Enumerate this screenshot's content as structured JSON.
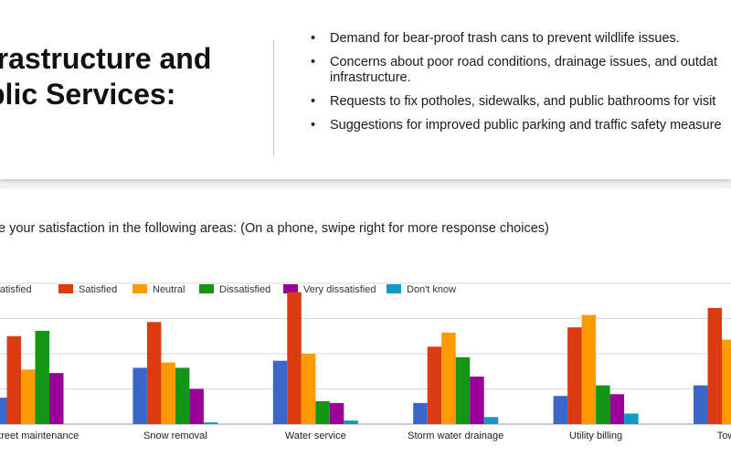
{
  "header": {
    "title_line1": "frastructure and",
    "title_line2": "blic Services:",
    "bullets": [
      "Demand for bear-proof trash cans to prevent wildlife issues.",
      "Concerns about poor road conditions, drainage issues, and outdat",
      "infrastructure.",
      "Requests to fix potholes, sidewalks, and public bathrooms for visit",
      "Suggestions for improved public parking and traffic safety measure"
    ]
  },
  "survey": {
    "question": "e your satisfaction in the following areas:  (On a phone, swipe right for more response choices)"
  },
  "chart_data": {
    "type": "bar",
    "title": "",
    "xlabel": "",
    "ylabel": "",
    "grid": true,
    "legend_position": "top",
    "categories": [
      "Street maintenance",
      "Snow removal",
      "Water service",
      "Storm water drainage",
      "Utility billing",
      "Town tra"
    ],
    "series": [
      {
        "name": "ry satisfied",
        "color": "#3b66c9",
        "values": [
          15,
          32,
          36,
          12,
          16,
          22
        ]
      },
      {
        "name": "Satisfied",
        "color": "#dc3b12",
        "values": [
          50,
          58,
          75,
          44,
          55,
          66
        ]
      },
      {
        "name": "Neutral",
        "color": "#fd9a02",
        "values": [
          31,
          35,
          40,
          52,
          62,
          48
        ]
      },
      {
        "name": "Dissatisfied",
        "color": "#139616",
        "values": [
          53,
          32,
          13,
          38,
          22,
          0
        ]
      },
      {
        "name": "Very dissatisfied",
        "color": "#990099",
        "values": [
          29,
          20,
          12,
          27,
          17,
          0
        ]
      },
      {
        "name": "Don't know",
        "color": "#0f99c5",
        "values": [
          0,
          1,
          2,
          4,
          6,
          0
        ]
      }
    ],
    "ylim": [
      0,
      80
    ]
  }
}
